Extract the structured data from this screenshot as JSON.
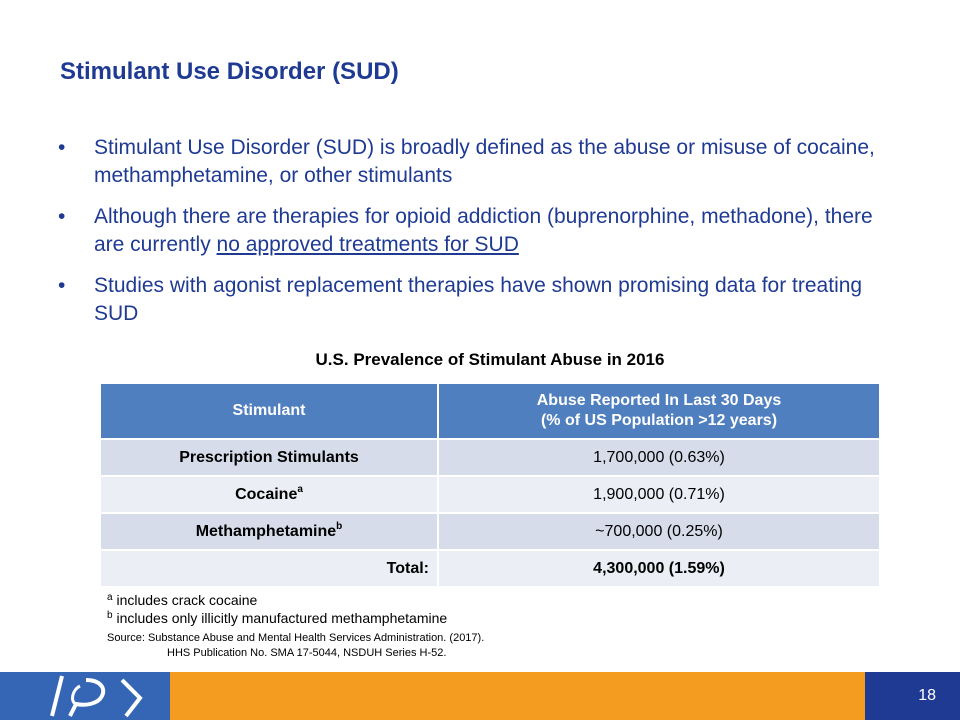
{
  "slide": {
    "title": "Stimulant Use Disorder (SUD)",
    "bullets": [
      "Stimulant Use Disorder (SUD) is broadly defined as the abuse or misuse of cocaine, methamphetamine, or other stimulants",
      "Although there are therapies for opioid addiction (buprenorphine, methadone), there are currently ",
      "Studies with agonist replacement therapies have shown promising data for treating SUD"
    ],
    "bullet2_underlined": "no approved treatments for SUD",
    "bullet_marker": "•",
    "page_number": "18"
  },
  "table": {
    "title": "U.S. Prevalence of Stimulant Abuse in 2016",
    "headers": {
      "col1": "Stimulant",
      "col2_line1": "Abuse Reported In Last 30 Days",
      "col2_line2": "(% of US Population >12 years)"
    },
    "rows": [
      {
        "name": "Prescription Stimulants",
        "sup": "",
        "value": "1,700,000 (0.63%)"
      },
      {
        "name": "Cocaine",
        "sup": "a",
        "value": "1,900,000 (0.71%)"
      },
      {
        "name": "Methamphetamine",
        "sup": "b",
        "value": "~700,000 (0.25%)"
      }
    ],
    "total": {
      "label": "Total:",
      "value": "4,300,000 (1.59%)"
    }
  },
  "footnotes": {
    "a_mark": "a",
    "a_text": " includes crack cocaine",
    "b_mark": "b",
    "b_text": " includes only illicitly manufactured methamphetamine"
  },
  "source": {
    "line1": "Source:  Substance Abuse and Mental Health Services Administration. (2017).",
    "line2": "HHS Publication No. SMA 17-5044, NSDUH Series H-52."
  },
  "colors": {
    "title_blue": "#1f3a93",
    "header_blue": "#4f7fbf",
    "footer_orange": "#f39c1f",
    "footer_logo_blue": "#3566b5"
  }
}
